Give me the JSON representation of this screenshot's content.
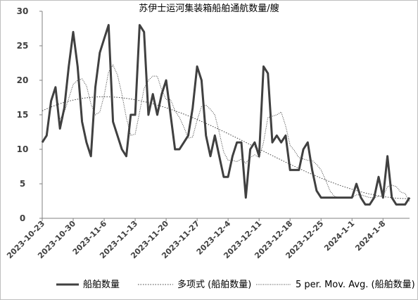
{
  "chart_data": {
    "type": "line",
    "title": "苏伊士运河集装箱船舶通航数量/艘",
    "xlabel": "",
    "ylabel": "",
    "ylim": [
      0,
      30
    ],
    "y_ticks": [
      0,
      5,
      10,
      15,
      20,
      25,
      30
    ],
    "x_tick_labels": [
      "2023-10-23",
      "2023-10-30",
      "2023-11-6",
      "2023-11-13",
      "2023-11-20",
      "2023-11-27",
      "2023-12-4",
      "2023-12-11",
      "2023-12-18",
      "2023-12-25",
      "2024-1-1",
      "2024-1-8"
    ],
    "x_start": "2023-10-23",
    "grid": false,
    "legend_position": "bottom",
    "series": [
      {
        "name": "船舶数量",
        "style": "solid-thick",
        "color": "#404040",
        "values": [
          11,
          12,
          17,
          19,
          13,
          16,
          22,
          27,
          22,
          14,
          11,
          9,
          19,
          24,
          26,
          28,
          14,
          12,
          10,
          9,
          15,
          15,
          28,
          27,
          15,
          18,
          15,
          18,
          20,
          15,
          10,
          10,
          11,
          12,
          16,
          22,
          20,
          12,
          9,
          12,
          9,
          6,
          6,
          9,
          11,
          11,
          3,
          10,
          11,
          9,
          22,
          21,
          11,
          12,
          11,
          12,
          7,
          7,
          7,
          10,
          11,
          7,
          4,
          3,
          3,
          3,
          3,
          3,
          3,
          3,
          3,
          5,
          3,
          2,
          2,
          3,
          6,
          3,
          9,
          3,
          2,
          2,
          2,
          3
        ]
      },
      {
        "name": "多项式 (船舶数量)",
        "style": "dotted-trend",
        "color": "#404040"
      },
      {
        "name": "5 per. Mov. Avg. (船舶数量)",
        "style": "dotted",
        "color": "#404040"
      }
    ]
  }
}
